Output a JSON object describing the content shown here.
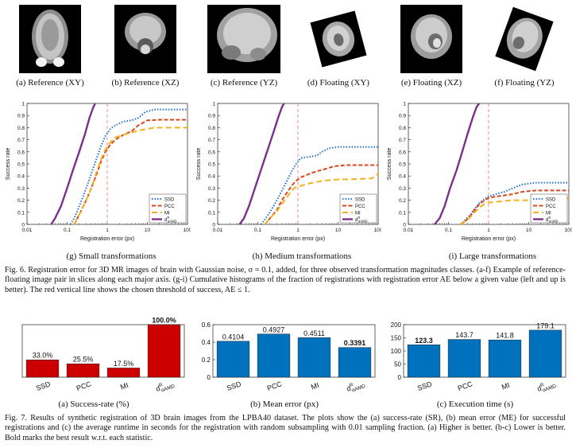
{
  "thumbnails": [
    {
      "caption": "(a) Reference (XY)"
    },
    {
      "caption": "(b) Reference (XZ)"
    },
    {
      "caption": "(c) Reference (YZ)"
    },
    {
      "caption": "(d) Floating (XY)"
    },
    {
      "caption": "(e) Floating (XZ)"
    },
    {
      "caption": "(f) Floating (YZ)"
    }
  ],
  "fig6": {
    "label": "Fig. 6.",
    "caption": "Registration error for 3D MR images of brain with Gaussian noise, σ = 0.1, added, for three observed transformation magnitudes classes. (a-f) Example of reference-floating image pair in slices along each major axis. (g-i) Cumulative histograms of the fraction of registrations with registration error AE below a given value (left and up is better). The red vertical line shows the chosen threshold of success, AE ≤ 1.",
    "subcaptions": [
      "(g) Small transformations",
      "(h) Medium transformations",
      "(i) Large transformations"
    ]
  },
  "fig7": {
    "label": "Fig. 7.",
    "caption": "Results of synthetic registration of 3D brain images from the LPBA40 dataset. The plots show the (a) success-rate (SR), (b) mean error (ME) for successful registrations and (c) the average runtime in seconds for the registration with random subsampling with 0.01 sampling fraction. (a) Higher is better. (b-c) Lower is better. Bold marks the best result w.r.t. each statistic.",
    "subcaptions": [
      "(a) Success-rate (%)",
      "(b) Mean error (px)",
      "(c) Execution time (s)"
    ]
  },
  "colors": {
    "ssd": "#1f6fd1",
    "pcc": "#d9481c",
    "mi": "#f2b01e",
    "amd": "#7e2f8e",
    "threshold": "#f08a8a",
    "bar_red": "#cc0000",
    "bar_blue": "#0072bd"
  },
  "chart_data": [
    {
      "type": "line",
      "id": "g",
      "title": "(g) Small transformations",
      "xlabel": "Registration error (px)",
      "ylabel": "Success rate",
      "xscale": "log",
      "xlim": [
        0.01,
        100
      ],
      "ylim": [
        0,
        1
      ],
      "xticks": [
        "0.01",
        "0.1",
        "1",
        "10",
        "100"
      ],
      "yticks": [
        "0",
        "0.1",
        "0.2",
        "0.3",
        "0.4",
        "0.5",
        "0.6",
        "0.7",
        "0.8",
        "0.9",
        "1"
      ],
      "threshold": 1,
      "legend_position": "bottom-right",
      "series": [
        {
          "name": "SSD",
          "points": [
            [
              0.12,
              0
            ],
            [
              0.15,
              0.05
            ],
            [
              0.2,
              0.15
            ],
            [
              0.3,
              0.3
            ],
            [
              0.4,
              0.42
            ],
            [
              0.55,
              0.55
            ],
            [
              0.7,
              0.65
            ],
            [
              0.9,
              0.73
            ],
            [
              1.2,
              0.79
            ],
            [
              1.6,
              0.82
            ],
            [
              2.5,
              0.85
            ],
            [
              4,
              0.86
            ],
            [
              6,
              0.88
            ],
            [
              9,
              0.93
            ],
            [
              15,
              0.95
            ],
            [
              30,
              0.95
            ],
            [
              100,
              0.95
            ]
          ]
        },
        {
          "name": "PCC",
          "points": [
            [
              0.15,
              0
            ],
            [
              0.2,
              0.08
            ],
            [
              0.3,
              0.2
            ],
            [
              0.4,
              0.3
            ],
            [
              0.55,
              0.42
            ],
            [
              0.7,
              0.52
            ],
            [
              0.9,
              0.6
            ],
            [
              1.2,
              0.66
            ],
            [
              1.6,
              0.7
            ],
            [
              2.5,
              0.74
            ],
            [
              4,
              0.77
            ],
            [
              6,
              0.82
            ],
            [
              10,
              0.86
            ],
            [
              20,
              0.865
            ],
            [
              100,
              0.865
            ]
          ]
        },
        {
          "name": "MI",
          "points": [
            [
              0.15,
              0
            ],
            [
              0.2,
              0.08
            ],
            [
              0.3,
              0.2
            ],
            [
              0.4,
              0.3
            ],
            [
              0.55,
              0.44
            ],
            [
              0.7,
              0.54
            ],
            [
              0.9,
              0.62
            ],
            [
              1.2,
              0.68
            ],
            [
              1.6,
              0.72
            ],
            [
              2.5,
              0.74
            ],
            [
              4,
              0.76
            ],
            [
              7,
              0.78
            ],
            [
              15,
              0.8
            ],
            [
              100,
              0.8
            ]
          ]
        },
        {
          "name": "d^R_{αAMD}",
          "points": [
            [
              0.04,
              0
            ],
            [
              0.05,
              0.05
            ],
            [
              0.07,
              0.15
            ],
            [
              0.1,
              0.3
            ],
            [
              0.14,
              0.45
            ],
            [
              0.2,
              0.6
            ],
            [
              0.28,
              0.75
            ],
            [
              0.36,
              0.88
            ],
            [
              0.45,
              0.97
            ],
            [
              0.5,
              1.0
            ]
          ]
        }
      ]
    },
    {
      "type": "line",
      "id": "h",
      "title": "(h) Medium transformations",
      "xlabel": "Registration error (px)",
      "ylabel": "Success rate",
      "xscale": "log",
      "xlim": [
        0.01,
        100
      ],
      "ylim": [
        0,
        1
      ],
      "xticks": [
        "0.01",
        "0.1",
        "1",
        "10",
        "100"
      ],
      "yticks": [
        "0",
        "0.1",
        "0.2",
        "0.3",
        "0.4",
        "0.5",
        "0.6",
        "0.7",
        "0.8",
        "0.9",
        "1"
      ],
      "threshold": 1,
      "legend_position": "bottom-right",
      "series": [
        {
          "name": "SSD",
          "points": [
            [
              0.12,
              0
            ],
            [
              0.15,
              0.04
            ],
            [
              0.2,
              0.1
            ],
            [
              0.3,
              0.2
            ],
            [
              0.4,
              0.28
            ],
            [
              0.55,
              0.37
            ],
            [
              0.7,
              0.44
            ],
            [
              0.9,
              0.5
            ],
            [
              1.2,
              0.55
            ],
            [
              2,
              0.56
            ],
            [
              3,
              0.57
            ],
            [
              4,
              0.6
            ],
            [
              6,
              0.63
            ],
            [
              10,
              0.64
            ],
            [
              30,
              0.64
            ],
            [
              100,
              0.64
            ]
          ]
        },
        {
          "name": "PCC",
          "points": [
            [
              0.15,
              0
            ],
            [
              0.2,
              0.05
            ],
            [
              0.3,
              0.12
            ],
            [
              0.4,
              0.2
            ],
            [
              0.55,
              0.27
            ],
            [
              0.7,
              0.32
            ],
            [
              0.9,
              0.36
            ],
            [
              1.2,
              0.39
            ],
            [
              2,
              0.42
            ],
            [
              3,
              0.44
            ],
            [
              5,
              0.46
            ],
            [
              8,
              0.48
            ],
            [
              15,
              0.49
            ],
            [
              100,
              0.49
            ]
          ]
        },
        {
          "name": "MI",
          "points": [
            [
              0.15,
              0
            ],
            [
              0.2,
              0.05
            ],
            [
              0.3,
              0.11
            ],
            [
              0.4,
              0.17
            ],
            [
              0.55,
              0.23
            ],
            [
              0.7,
              0.28
            ],
            [
              0.9,
              0.31
            ],
            [
              1.2,
              0.32
            ],
            [
              2,
              0.34
            ],
            [
              4,
              0.36
            ],
            [
              8,
              0.37
            ],
            [
              30,
              0.375
            ],
            [
              70,
              0.38
            ],
            [
              100,
              0.42
            ]
          ]
        },
        {
          "name": "d^R_{αAMD}",
          "points": [
            [
              0.035,
              0
            ],
            [
              0.045,
              0.05
            ],
            [
              0.06,
              0.15
            ],
            [
              0.085,
              0.3
            ],
            [
              0.12,
              0.45
            ],
            [
              0.17,
              0.6
            ],
            [
              0.24,
              0.75
            ],
            [
              0.32,
              0.88
            ],
            [
              0.4,
              0.97
            ],
            [
              0.45,
              1.0
            ]
          ]
        }
      ]
    },
    {
      "type": "line",
      "id": "i",
      "title": "(i) Large transformations",
      "xlabel": "Registration error (px)",
      "ylabel": "Success rate",
      "xscale": "log",
      "xlim": [
        0.01,
        100
      ],
      "ylim": [
        0,
        1
      ],
      "xticks": [
        "0.01",
        "0.1",
        "1",
        "10",
        "100"
      ],
      "yticks": [
        "0",
        "0.1",
        "0.2",
        "0.3",
        "0.4",
        "0.5",
        "0.6",
        "0.7",
        "0.8",
        "0.9",
        "1"
      ],
      "threshold": 1,
      "legend_position": "bottom-right",
      "series": [
        {
          "name": "SSD",
          "points": [
            [
              0.2,
              0
            ],
            [
              0.25,
              0.03
            ],
            [
              0.35,
              0.08
            ],
            [
              0.45,
              0.13
            ],
            [
              0.6,
              0.18
            ],
            [
              0.8,
              0.21
            ],
            [
              1,
              0.23
            ],
            [
              1.5,
              0.25
            ],
            [
              2.5,
              0.27
            ],
            [
              4,
              0.3
            ],
            [
              7,
              0.33
            ],
            [
              15,
              0.345
            ],
            [
              100,
              0.345
            ]
          ]
        },
        {
          "name": "PCC",
          "points": [
            [
              0.2,
              0
            ],
            [
              0.25,
              0.02
            ],
            [
              0.35,
              0.07
            ],
            [
              0.45,
              0.12
            ],
            [
              0.6,
              0.17
            ],
            [
              0.8,
              0.2
            ],
            [
              1,
              0.22
            ],
            [
              1.5,
              0.23
            ],
            [
              2.5,
              0.24
            ],
            [
              4,
              0.25
            ],
            [
              7,
              0.27
            ],
            [
              15,
              0.28
            ],
            [
              100,
              0.28
            ]
          ]
        },
        {
          "name": "MI",
          "points": [
            [
              0.2,
              0
            ],
            [
              0.25,
              0.02
            ],
            [
              0.35,
              0.06
            ],
            [
              0.45,
              0.1
            ],
            [
              0.6,
              0.14
            ],
            [
              0.8,
              0.17
            ],
            [
              1,
              0.18
            ],
            [
              2,
              0.19
            ],
            [
              4,
              0.2
            ],
            [
              10,
              0.2
            ],
            [
              40,
              0.2
            ],
            [
              70,
              0.2
            ],
            [
              100,
              0.22
            ]
          ]
        },
        {
          "name": "d^R_{αAMD}",
          "points": [
            [
              0.045,
              0
            ],
            [
              0.06,
              0.05
            ],
            [
              0.08,
              0.15
            ],
            [
              0.11,
              0.3
            ],
            [
              0.16,
              0.45
            ],
            [
              0.22,
              0.6
            ],
            [
              0.3,
              0.75
            ],
            [
              0.4,
              0.88
            ],
            [
              0.5,
              0.97
            ],
            [
              0.58,
              1.0
            ]
          ]
        }
      ]
    },
    {
      "type": "bar",
      "id": "a",
      "title": "(a) Success-rate (%)",
      "categories": [
        "SSD",
        "PCC",
        "MI",
        "d^R_{αAMD}"
      ],
      "values": [
        33.0,
        25.5,
        17.5,
        100.0
      ],
      "labels": [
        "33.0%",
        "25.5%",
        "17.5%",
        "100.0%"
      ],
      "best_index": 3,
      "ylim": [
        0,
        100
      ],
      "yticks": []
    },
    {
      "type": "bar",
      "id": "b",
      "title": "(b) Mean error (px)",
      "categories": [
        "SSD",
        "PCC",
        "MI",
        "d^R_{αAMD}"
      ],
      "values": [
        0.4104,
        0.4927,
        0.4511,
        0.3391
      ],
      "labels": [
        "0.4104",
        "0.4927",
        "0.4511",
        "0.3391"
      ],
      "best_index": 3,
      "ylim": [
        0,
        0.6
      ],
      "yticks": [
        "0",
        "0.2",
        "0.4",
        "0.6"
      ]
    },
    {
      "type": "bar",
      "id": "c",
      "title": "(c) Execution time (s)",
      "categories": [
        "SSD",
        "PCC",
        "MI",
        "d^R_{αAMD}"
      ],
      "values": [
        123.3,
        143.7,
        141.8,
        179.1
      ],
      "labels": [
        "123.3",
        "143.7",
        "141.8",
        "179.1"
      ],
      "best_index": 0,
      "ylim": [
        0,
        200
      ],
      "yticks": [
        "0",
        "50",
        "100",
        "150",
        "200"
      ]
    }
  ]
}
